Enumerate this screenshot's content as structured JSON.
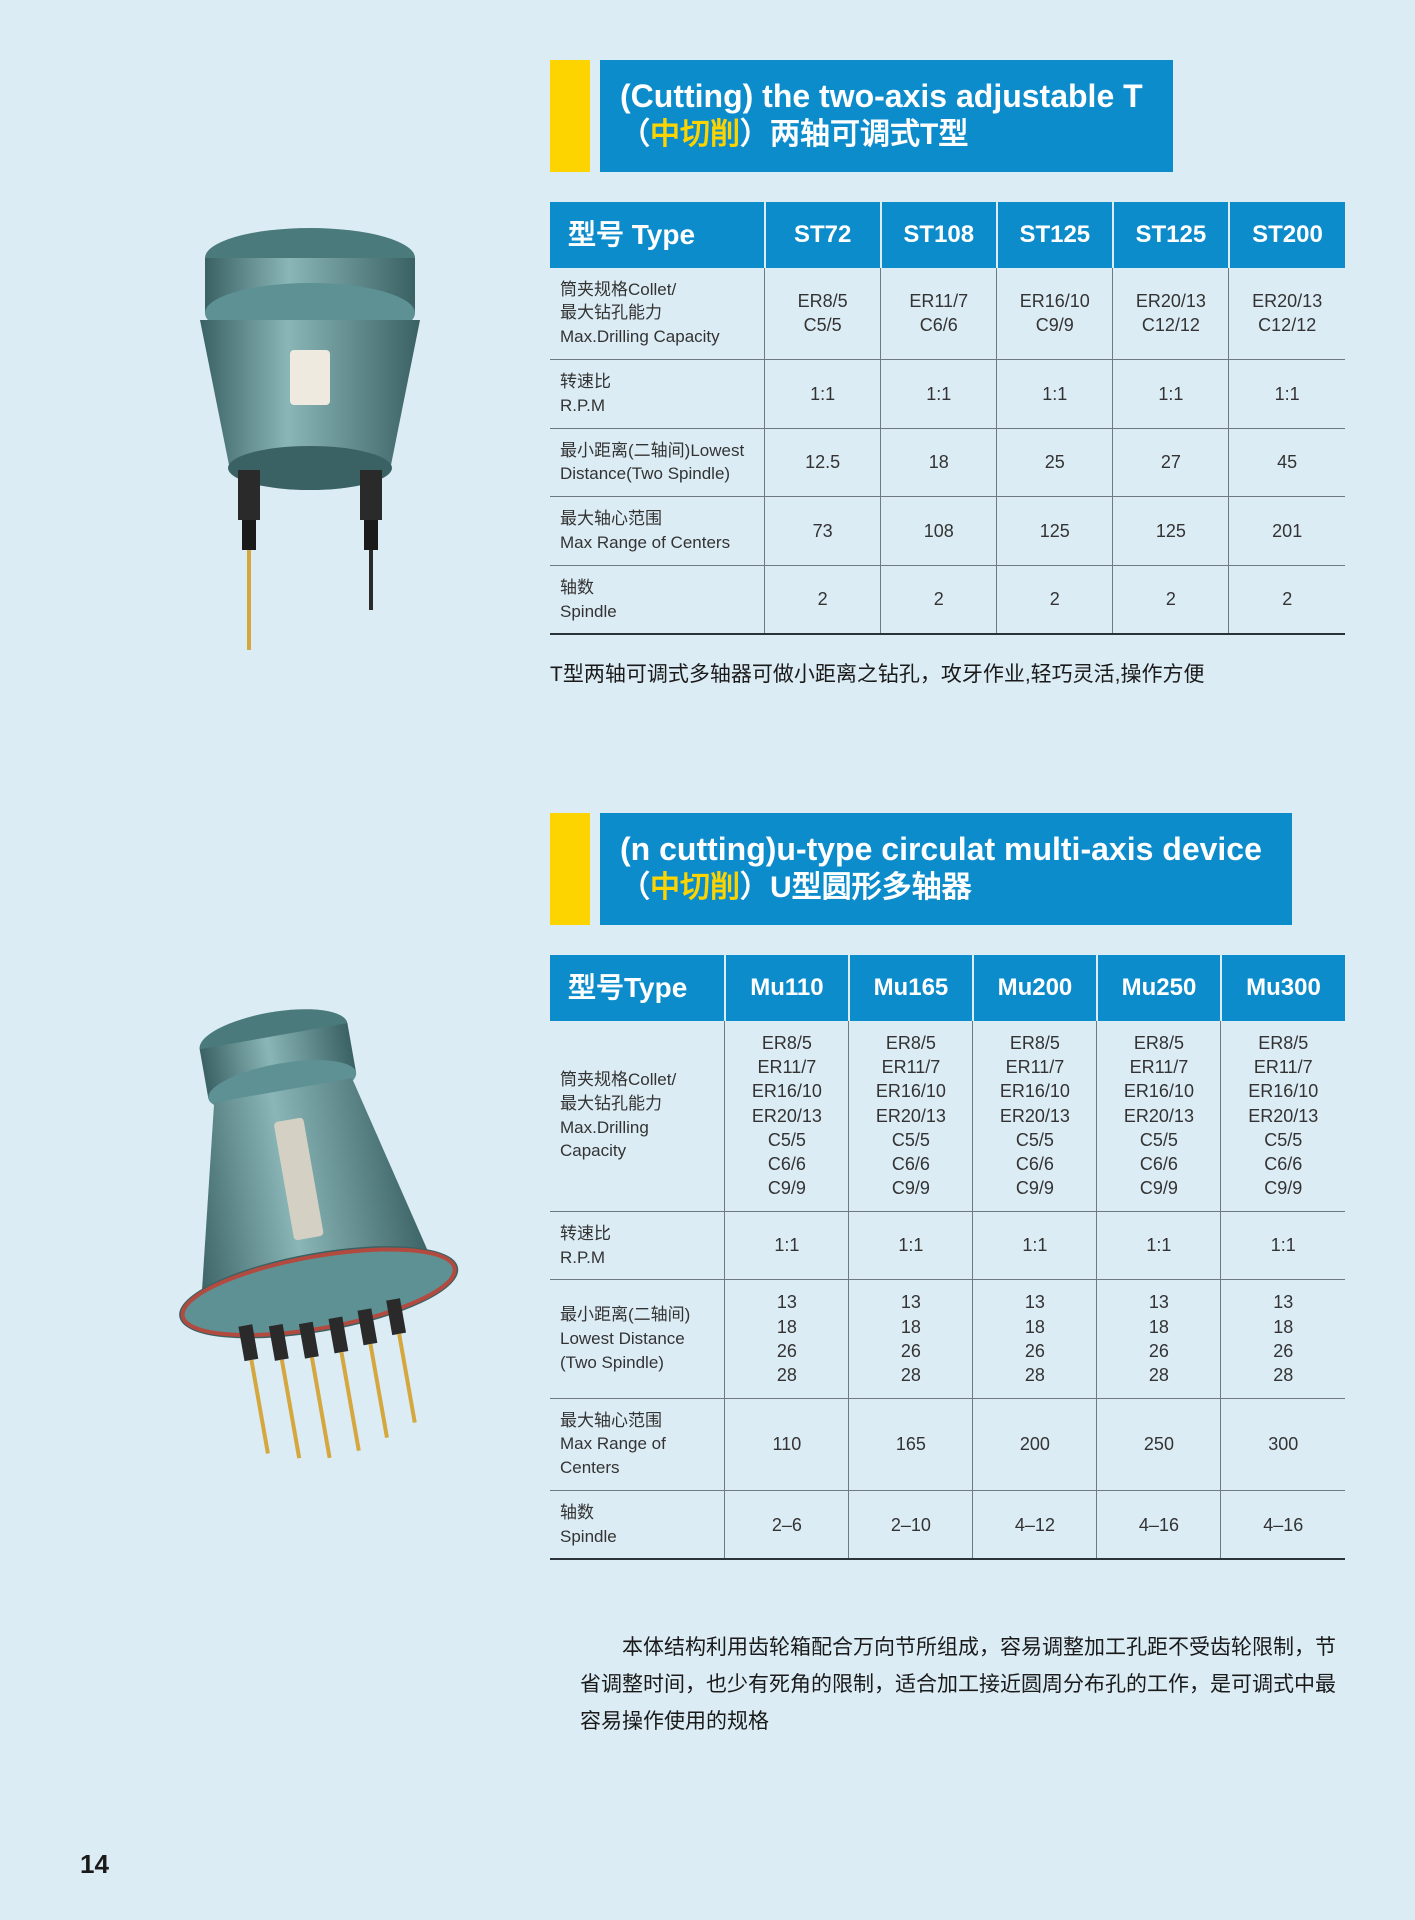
{
  "colors": {
    "page_bg": "#dcecf5",
    "header_bg": "#0d8ccc",
    "header_text": "#ffffff",
    "accent_yellow": "#fdd400",
    "grid_line": "#6f7a80",
    "body_text": "#333333",
    "machine_body": "#5d9194",
    "machine_dark": "#3a6163",
    "machine_light": "#8ab6b8",
    "drill_gold": "#d4a73f"
  },
  "section1": {
    "title_en": "(Cutting) the two-axis adjustable T",
    "title_zh_pre": "（",
    "title_zh_yellow": "中切削",
    "title_zh_post": "）两轴可调式T型",
    "header_label": "型号 Type",
    "cols": [
      "ST72",
      "ST108",
      "ST125",
      "ST125",
      "ST200"
    ],
    "rows": [
      {
        "label": "筒夹规格Collet/\n最大钻孔能力\nMax.Drilling Capacity",
        "cells": [
          "ER8/5\nC5/5",
          "ER11/7\nC6/6",
          "ER16/10\nC9/9",
          "ER20/13\nC12/12",
          "ER20/13\nC12/12"
        ]
      },
      {
        "label": "转速比\nR.P.M",
        "cells": [
          "1:1",
          "1:1",
          "1:1",
          "1:1",
          "1:1"
        ]
      },
      {
        "label": "最小距离(二轴间)Lowest\nDistance(Two Spindle)",
        "cells": [
          "12.5",
          "18",
          "25",
          "27",
          "45"
        ]
      },
      {
        "label": "最大轴心范围\nMax Range of Centers",
        "cells": [
          "73",
          "108",
          "125",
          "125",
          "201"
        ]
      },
      {
        "label": "轴数\nSpindle",
        "cells": [
          "2",
          "2",
          "2",
          "2",
          "2"
        ]
      }
    ],
    "note": "T型两轴可调式多轴器可做小距离之钻孔，攻牙作业,轻巧灵活,操作方便",
    "col_widths": [
      "27%",
      "14.6%",
      "14.6%",
      "14.6%",
      "14.6%",
      "14.6%"
    ]
  },
  "section2": {
    "title_en": "(n cutting)u-type circulat multi-axis device",
    "title_zh_pre": "（",
    "title_zh_yellow": "中切削",
    "title_zh_post": "）U型圆形多轴器",
    "header_label": "型号Type",
    "cols": [
      "Mu110",
      "Mu165",
      "Mu200",
      "Mu250",
      "Mu300"
    ],
    "rows": [
      {
        "label": "筒夹规格Collet/\n最大钻孔能力\nMax.Drilling\nCapacity",
        "cells": [
          "ER8/5\nER11/7\nER16/10\nER20/13\nC5/5\nC6/6\nC9/9",
          "ER8/5\nER11/7\nER16/10\nER20/13\nC5/5\nC6/6\nC9/9",
          "ER8/5\nER11/7\nER16/10\nER20/13\nC5/5\nC6/6\nC9/9",
          "ER8/5\nER11/7\nER16/10\nER20/13\nC5/5\nC6/6\nC9/9",
          "ER8/5\nER11/7\nER16/10\nER20/13\nC5/5\nC6/6\nC9/9"
        ]
      },
      {
        "label": "转速比\nR.P.M",
        "cells": [
          "1:1",
          "1:1",
          "1:1",
          "1:1",
          "1:1"
        ]
      },
      {
        "label": "最小距离(二轴间)\nLowest Distance\n(Two Spindle)",
        "cells": [
          "13\n18\n26\n28",
          "13\n18\n26\n28",
          "13\n18\n26\n28",
          "13\n18\n26\n28",
          "13\n18\n26\n28"
        ]
      },
      {
        "label": "最大轴心范围\nMax Range of\nCenters",
        "cells": [
          "110",
          "165",
          "200",
          "250",
          "300"
        ]
      },
      {
        "label": "轴数\nSpindle",
        "cells": [
          "2–6",
          "2–10",
          "4–12",
          "4–16",
          "4–16"
        ]
      }
    ],
    "col_widths": [
      "22%",
      "15.6%",
      "15.6%",
      "15.6%",
      "15.6%",
      "15.6%"
    ]
  },
  "footer_note": "本体结构利用齿轮箱配合万向节所组成，容易调整加工孔距不受齿轮限制，节省调整时间，也少有死角的限制，适合加工接近圆周分布孔的工作，是可调式中最容易操作使用的规格",
  "page_number": "14"
}
